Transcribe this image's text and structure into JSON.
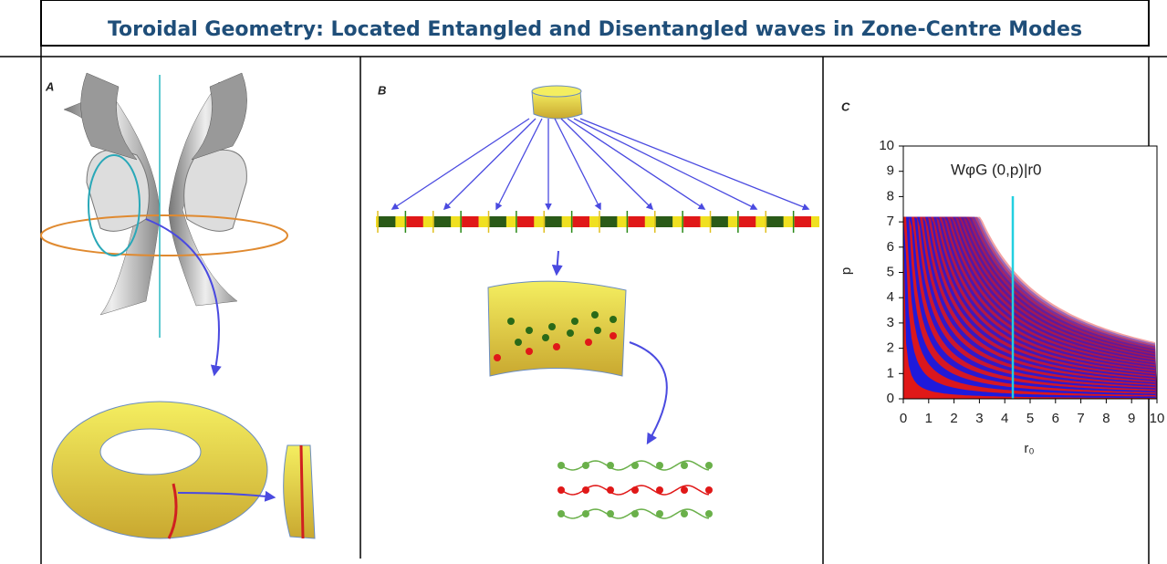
{
  "header": {
    "title": "Toroidal Geometry: Located Entangled and Disentangled waves in Zone-Centre Modes"
  },
  "panels": [
    {
      "label": "A"
    },
    {
      "label": "B"
    },
    {
      "label": "C",
      "plot": {
        "annotation": "WφG (0,p)|r0",
        "x_label": "r₀",
        "y_label": "p",
        "xlim": [
          0,
          10
        ],
        "ylim": [
          0,
          10
        ],
        "xticks": [
          0,
          1,
          2,
          3,
          4,
          5,
          6,
          7,
          8,
          9,
          10
        ],
        "yticks": [
          0,
          1,
          2,
          3,
          4,
          5,
          6,
          7,
          8,
          9,
          10
        ]
      }
    }
  ]
}
